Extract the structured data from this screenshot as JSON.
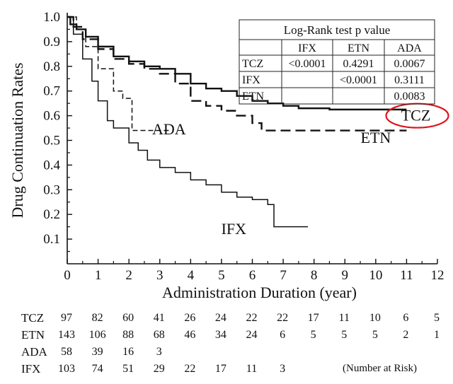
{
  "chart_data": {
    "type": "line",
    "subtype": "kaplan-meier step curves",
    "ylabel": "Drug Continuation Rates",
    "xlabel": "Administration Duration (year)",
    "xlim": [
      0,
      12
    ],
    "ylim": [
      0,
      1.0
    ],
    "x_ticks": [
      "0",
      "1",
      "2",
      "3",
      "4",
      "5",
      "6",
      "7",
      "8",
      "9",
      "10",
      "11",
      "12"
    ],
    "y_ticks": [
      "0.1",
      "0.2",
      "0.3",
      "0.4",
      "0.5",
      "0.6",
      "0.7",
      "0.8",
      "0.9",
      "1.0"
    ],
    "series": [
      {
        "name": "TCZ",
        "style": "solid-thick",
        "points": [
          [
            0,
            1.0
          ],
          [
            0.1,
            0.97
          ],
          [
            0.3,
            0.95
          ],
          [
            0.6,
            0.92
          ],
          [
            1.0,
            0.88
          ],
          [
            1.5,
            0.84
          ],
          [
            2.0,
            0.82
          ],
          [
            2.5,
            0.8
          ],
          [
            3.0,
            0.79
          ],
          [
            3.5,
            0.77
          ],
          [
            4.0,
            0.73
          ],
          [
            4.5,
            0.71
          ],
          [
            5.0,
            0.7
          ],
          [
            5.5,
            0.68
          ],
          [
            6.0,
            0.66
          ],
          [
            6.5,
            0.65
          ],
          [
            7.0,
            0.64
          ],
          [
            7.5,
            0.63
          ],
          [
            8.5,
            0.625
          ],
          [
            10.5,
            0.625
          ],
          [
            11.0,
            0.625
          ]
        ]
      },
      {
        "name": "ETN",
        "style": "dashed-thick",
        "points": [
          [
            0,
            1.0
          ],
          [
            0.2,
            0.96
          ],
          [
            0.5,
            0.91
          ],
          [
            1.0,
            0.87
          ],
          [
            1.5,
            0.83
          ],
          [
            2.0,
            0.81
          ],
          [
            2.5,
            0.79
          ],
          [
            3.0,
            0.77
          ],
          [
            3.5,
            0.73
          ],
          [
            4.0,
            0.66
          ],
          [
            4.5,
            0.64
          ],
          [
            5.0,
            0.62
          ],
          [
            5.5,
            0.6
          ],
          [
            6.0,
            0.57
          ],
          [
            6.3,
            0.54
          ],
          [
            8.0,
            0.54
          ],
          [
            11.0,
            0.54
          ]
        ]
      },
      {
        "name": "ADA",
        "style": "dashed-thin",
        "points": [
          [
            0,
            1.0
          ],
          [
            0.3,
            0.95
          ],
          [
            0.6,
            0.88
          ],
          [
            1.0,
            0.79
          ],
          [
            1.5,
            0.7
          ],
          [
            1.8,
            0.67
          ],
          [
            2.1,
            0.54
          ],
          [
            3.3,
            0.54
          ]
        ]
      },
      {
        "name": "IFX",
        "style": "solid-thin",
        "points": [
          [
            0,
            1.0
          ],
          [
            0.2,
            0.93
          ],
          [
            0.5,
            0.83
          ],
          [
            0.8,
            0.74
          ],
          [
            1.0,
            0.66
          ],
          [
            1.3,
            0.58
          ],
          [
            1.5,
            0.55
          ],
          [
            2.0,
            0.49
          ],
          [
            2.3,
            0.46
          ],
          [
            2.6,
            0.42
          ],
          [
            3.0,
            0.39
          ],
          [
            3.5,
            0.37
          ],
          [
            4.0,
            0.34
          ],
          [
            4.5,
            0.32
          ],
          [
            5.0,
            0.29
          ],
          [
            5.5,
            0.27
          ],
          [
            6.0,
            0.26
          ],
          [
            6.5,
            0.24
          ],
          [
            6.7,
            0.15
          ],
          [
            7.0,
            0.15
          ],
          [
            7.8,
            0.15
          ]
        ]
      }
    ],
    "curve_labels": [
      {
        "text": "TCZ",
        "x": 11.3,
        "y": 0.58,
        "circled": true
      },
      {
        "text": "ETN",
        "x": 10.0,
        "y": 0.49
      },
      {
        "text": "ADA",
        "x": 3.3,
        "y": 0.525
      },
      {
        "text": "IFX",
        "x": 5.4,
        "y": 0.12
      }
    ],
    "pvalue_table": {
      "title": "Log-Rank test p value",
      "columns": [
        "",
        "IFX",
        "ETN",
        "ADA"
      ],
      "rows": [
        [
          "TCZ",
          "<0.0001",
          "0.4291",
          "0.0067"
        ],
        [
          "IFX",
          "",
          "<0.0001",
          "0.3111"
        ],
        [
          "ETN",
          "",
          "",
          "0.0083"
        ]
      ]
    },
    "number_at_risk": {
      "note": "(Number at Risk)",
      "rows": [
        {
          "label": "TCZ",
          "values": [
            "97",
            "82",
            "60",
            "41",
            "26",
            "24",
            "22",
            "22",
            "17",
            "11",
            "10",
            "6",
            "5"
          ]
        },
        {
          "label": "ETN",
          "values": [
            "143",
            "106",
            "88",
            "68",
            "46",
            "34",
            "24",
            "6",
            "5",
            "5",
            "5",
            "2",
            "1"
          ]
        },
        {
          "label": "ADA",
          "values": [
            "58",
            "39",
            "16",
            "3"
          ]
        },
        {
          "label": "IFX",
          "values": [
            "103",
            "74",
            "51",
            "29",
            "22",
            "17",
            "11",
            "3"
          ]
        }
      ]
    },
    "colors": {
      "axis": "#111111",
      "lines": "#111111",
      "highlight": "#e0141c"
    },
    "grid": false
  }
}
